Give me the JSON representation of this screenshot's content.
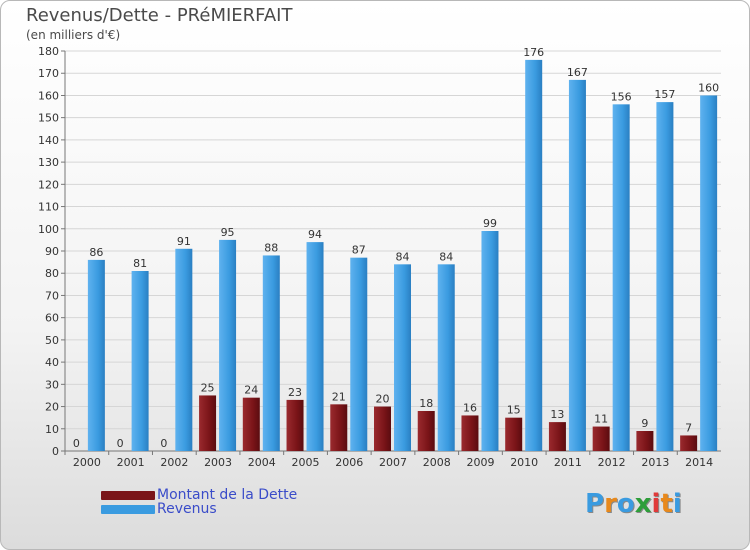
{
  "chart_data": {
    "type": "bar",
    "title": "Revenus/Dette - PRéMIERFAIT",
    "subtitle": "(en milliers d'€)",
    "categories": [
      "2000",
      "2001",
      "2002",
      "2003",
      "2004",
      "2005",
      "2006",
      "2007",
      "2008",
      "2009",
      "2010",
      "2011",
      "2012",
      "2013",
      "2014"
    ],
    "series": [
      {
        "name": "Montant de la Dette",
        "color": "#7a1418",
        "values": [
          0,
          0,
          0,
          25,
          24,
          23,
          21,
          20,
          18,
          16,
          15,
          13,
          11,
          9,
          7
        ]
      },
      {
        "name": "Revenus",
        "color": "#3a9be0",
        "values": [
          86,
          81,
          91,
          95,
          88,
          94,
          87,
          84,
          84,
          99,
          176,
          167,
          156,
          157,
          160
        ]
      }
    ],
    "ylim": [
      0,
      180
    ],
    "yticks": [
      0,
      10,
      20,
      30,
      40,
      50,
      60,
      70,
      80,
      90,
      100,
      110,
      120,
      130,
      140,
      150,
      160,
      170,
      180
    ],
    "grid": true,
    "legend_position": "bottom-left"
  },
  "brand": {
    "letters": [
      "P",
      "r",
      "o",
      "x",
      "i",
      "t",
      "i"
    ],
    "colors": [
      "#3a9be0",
      "#e8891c",
      "#3a9be0",
      "#2e9e3a",
      "#e03a3a",
      "#e8891c",
      "#3a9be0"
    ]
  }
}
